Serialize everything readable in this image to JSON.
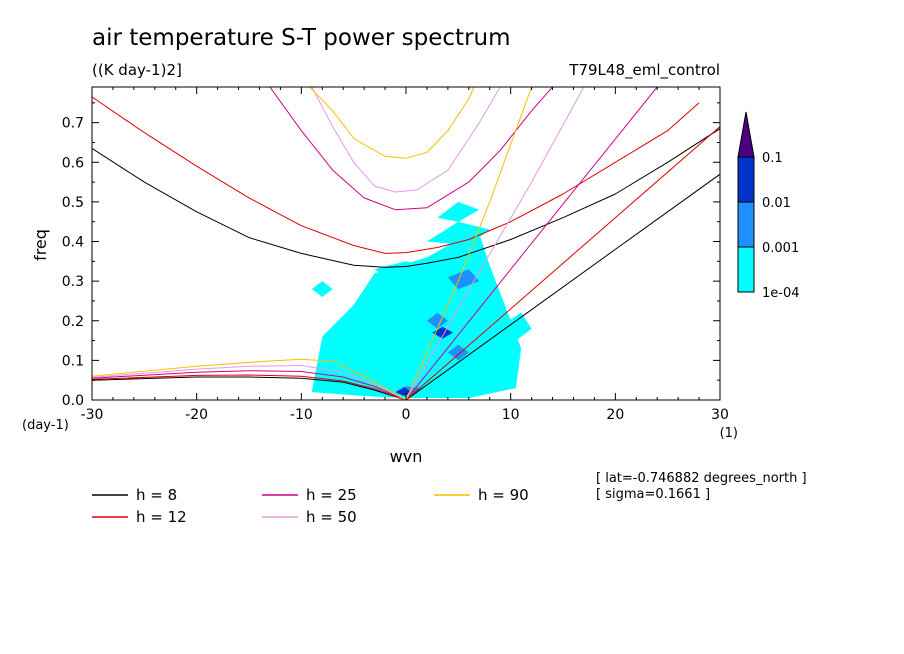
{
  "chart_data": {
    "type": "contour",
    "title": "air temperature S-T power spectrum",
    "units": "((K day-1)2]",
    "experiment": "T79L48_eml_control",
    "xlabel": "wvn",
    "ylabel": "freq",
    "x_unit_label": "(1)",
    "y_unit_label": "(day-1)",
    "xlim": [
      -30,
      30
    ],
    "ylim": [
      0,
      0.79
    ],
    "x_ticks": [
      -30,
      -20,
      -10,
      0,
      10,
      20,
      30
    ],
    "x_tick_labels": [
      "-30",
      "-20",
      "-10",
      "0",
      "10",
      "20",
      "30"
    ],
    "y_ticks": [
      0,
      0.1,
      0.2,
      0.3,
      0.4,
      0.5,
      0.6,
      0.7
    ],
    "y_tick_labels": [
      "0.0",
      "0.1",
      "0.2",
      "0.3",
      "0.4",
      "0.5",
      "0.6",
      "0.7"
    ],
    "colorbar": {
      "levels": [
        "1e-04",
        "0.001",
        "0.01",
        "0.1"
      ],
      "colors": [
        "#00ffff",
        "#1e90ff",
        "#0033cc",
        "#4b0082"
      ]
    },
    "dispersion_legend": [
      {
        "label": "h =  8",
        "h": 8,
        "color": "#000000"
      },
      {
        "label": "h = 12",
        "h": 12,
        "color": "#e00000"
      },
      {
        "label": "h = 25",
        "h": 25,
        "color": "#d0008c"
      },
      {
        "label": "h = 50",
        "h": 50,
        "color": "#e39ae3"
      },
      {
        "label": "h = 90",
        "h": 90,
        "color": "#f5c000"
      }
    ],
    "curves": [
      {
        "name": "ig-h8",
        "color": "#000000",
        "points": [
          [
            -30,
            0.635
          ],
          [
            -25,
            0.55
          ],
          [
            -20,
            0.475
          ],
          [
            -15,
            0.41
          ],
          [
            -10,
            0.37
          ],
          [
            -5,
            0.34
          ],
          [
            -2,
            0.335
          ],
          [
            0,
            0.337
          ],
          [
            2,
            0.345
          ],
          [
            5,
            0.36
          ],
          [
            10,
            0.405
          ],
          [
            15,
            0.46
          ],
          [
            20,
            0.52
          ],
          [
            25,
            0.6
          ],
          [
            30,
            0.685
          ]
        ]
      },
      {
        "name": "ig-h12",
        "color": "#e00000",
        "points": [
          [
            -30,
            0.765
          ],
          [
            -25,
            0.675
          ],
          [
            -20,
            0.59
          ],
          [
            -15,
            0.51
          ],
          [
            -10,
            0.44
          ],
          [
            -5,
            0.39
          ],
          [
            -2,
            0.37
          ],
          [
            0,
            0.372
          ],
          [
            3,
            0.385
          ],
          [
            6,
            0.405
          ],
          [
            10,
            0.45
          ],
          [
            15,
            0.52
          ],
          [
            20,
            0.6
          ],
          [
            25,
            0.68
          ],
          [
            28,
            0.75
          ]
        ]
      },
      {
        "name": "ig-h25",
        "color": "#d0008c",
        "points": [
          [
            -13,
            0.79
          ],
          [
            -10,
            0.68
          ],
          [
            -7,
            0.58
          ],
          [
            -4,
            0.51
          ],
          [
            -1,
            0.48
          ],
          [
            2,
            0.485
          ],
          [
            6,
            0.55
          ],
          [
            9,
            0.63
          ],
          [
            12,
            0.73
          ],
          [
            14,
            0.79
          ]
        ]
      },
      {
        "name": "ig-h50",
        "color": "#e39ae3",
        "points": [
          [
            -9,
            0.79
          ],
          [
            -7,
            0.69
          ],
          [
            -5,
            0.6
          ],
          [
            -3,
            0.54
          ],
          [
            -1,
            0.525
          ],
          [
            1,
            0.53
          ],
          [
            4,
            0.58
          ],
          [
            7,
            0.7
          ],
          [
            9,
            0.79
          ]
        ]
      },
      {
        "name": "ig-h90",
        "color": "#f5c000",
        "points": [
          [
            -9.2,
            0.79
          ],
          [
            -7,
            0.73
          ],
          [
            -5,
            0.66
          ],
          [
            -2,
            0.615
          ],
          [
            0,
            0.61
          ],
          [
            2,
            0.625
          ],
          [
            4,
            0.68
          ],
          [
            6,
            0.76
          ],
          [
            6.5,
            0.79
          ]
        ]
      },
      {
        "name": "kelvin-h8",
        "color": "#000000",
        "points": [
          [
            0,
            0
          ],
          [
            10,
            0.19
          ],
          [
            20,
            0.38
          ],
          [
            30,
            0.57
          ]
        ]
      },
      {
        "name": "kelvin-h12",
        "color": "#e00000",
        "points": [
          [
            0,
            0
          ],
          [
            10,
            0.23
          ],
          [
            20,
            0.46
          ],
          [
            30,
            0.69
          ]
        ]
      },
      {
        "name": "kelvin-h25",
        "color": "#d0008c",
        "points": [
          [
            0,
            0
          ],
          [
            10,
            0.33
          ],
          [
            17,
            0.56
          ],
          [
            24,
            0.79
          ]
        ]
      },
      {
        "name": "kelvin-h50",
        "color": "#e39ae3",
        "points": [
          [
            0,
            0
          ],
          [
            6.5,
            0.3
          ],
          [
            12,
            0.55
          ],
          [
            17,
            0.79
          ]
        ]
      },
      {
        "name": "kelvin-h90",
        "color": "#f5c000",
        "points": [
          [
            0,
            0
          ],
          [
            5,
            0.3
          ],
          [
            8,
            0.5
          ],
          [
            12,
            0.79
          ]
        ]
      },
      {
        "name": "rossby-h8",
        "color": "#000000",
        "points": [
          [
            -30,
            0.05
          ],
          [
            -20,
            0.058
          ],
          [
            -15,
            0.058
          ],
          [
            -10,
            0.055
          ],
          [
            -6,
            0.045
          ],
          [
            -3,
            0.025
          ],
          [
            0,
            0
          ]
        ]
      },
      {
        "name": "rossby-h12",
        "color": "#e00000",
        "points": [
          [
            -30,
            0.052
          ],
          [
            -20,
            0.062
          ],
          [
            -15,
            0.063
          ],
          [
            -10,
            0.06
          ],
          [
            -6,
            0.048
          ],
          [
            -3,
            0.028
          ],
          [
            0,
            0
          ]
        ]
      },
      {
        "name": "rossby-h25",
        "color": "#d0008c",
        "points": [
          [
            -30,
            0.055
          ],
          [
            -20,
            0.07
          ],
          [
            -15,
            0.074
          ],
          [
            -10,
            0.072
          ],
          [
            -6,
            0.058
          ],
          [
            -3,
            0.034
          ],
          [
            0,
            0
          ]
        ]
      },
      {
        "name": "rossby-h50",
        "color": "#e39ae3",
        "points": [
          [
            -30,
            0.057
          ],
          [
            -20,
            0.078
          ],
          [
            -15,
            0.085
          ],
          [
            -10,
            0.087
          ],
          [
            -6,
            0.07
          ],
          [
            -3,
            0.04
          ],
          [
            0,
            0
          ]
        ]
      },
      {
        "name": "rossby-h90",
        "color": "#f5c000",
        "points": [
          [
            -30,
            0.06
          ],
          [
            -20,
            0.085
          ],
          [
            -14,
            0.097
          ],
          [
            -10,
            0.103
          ],
          [
            -7,
            0.098
          ],
          [
            -4,
            0.06
          ],
          [
            -2,
            0.03
          ],
          [
            0,
            0
          ]
        ]
      }
    ],
    "power_regions": [
      {
        "level": "1e-04",
        "points": [
          [
            -9,
            0.02
          ],
          [
            -8,
            0.16
          ],
          [
            -5,
            0.24
          ],
          [
            -3,
            0.32
          ],
          [
            2,
            0.36
          ],
          [
            4,
            0.39
          ],
          [
            7,
            0.42
          ],
          [
            8,
            0.34
          ],
          [
            10,
            0.2
          ],
          [
            11,
            0.13
          ],
          [
            10.5,
            0.03
          ],
          [
            6,
            0.005
          ],
          [
            0,
            0.005
          ],
          [
            -4,
            0.01
          ]
        ]
      },
      {
        "level": "1e-04",
        "points": [
          [
            -3,
            0.33
          ],
          [
            0,
            0.35
          ],
          [
            3,
            0.33
          ],
          [
            1,
            0.3
          ],
          [
            -2,
            0.31
          ]
        ]
      },
      {
        "level": "1e-04",
        "points": [
          [
            2,
            0.4
          ],
          [
            5,
            0.45
          ],
          [
            8,
            0.43
          ],
          [
            6,
            0.39
          ]
        ]
      },
      {
        "level": "1e-04",
        "points": [
          [
            3,
            0.46
          ],
          [
            5,
            0.5
          ],
          [
            7,
            0.48
          ],
          [
            5,
            0.45
          ]
        ]
      },
      {
        "level": "1e-04",
        "points": [
          [
            -8,
            0.12
          ],
          [
            -6,
            0.15
          ],
          [
            -5,
            0.1
          ],
          [
            -7,
            0.08
          ]
        ]
      },
      {
        "level": "1e-04",
        "points": [
          [
            -9,
            0.28
          ],
          [
            -8,
            0.3
          ],
          [
            -7,
            0.28
          ],
          [
            -8,
            0.26
          ]
        ]
      },
      {
        "level": "1e-04",
        "points": [
          [
            8,
            0.17
          ],
          [
            11,
            0.22
          ],
          [
            12,
            0.18
          ],
          [
            10,
            0.14
          ]
        ]
      },
      {
        "level": "0.001",
        "points": [
          [
            2,
            0.2
          ],
          [
            3,
            0.22
          ],
          [
            4,
            0.2
          ],
          [
            3,
            0.18
          ]
        ]
      },
      {
        "level": "0.001",
        "points": [
          [
            4,
            0.12
          ],
          [
            5,
            0.14
          ],
          [
            6,
            0.12
          ],
          [
            5,
            0.1
          ]
        ]
      },
      {
        "level": "0.001",
        "points": [
          [
            4,
            0.31
          ],
          [
            6,
            0.33
          ],
          [
            7,
            0.3
          ],
          [
            5,
            0.28
          ]
        ]
      },
      {
        "level": "0.001",
        "points": [
          [
            -1,
            0.02
          ],
          [
            0,
            0.035
          ],
          [
            1.5,
            0.03
          ],
          [
            0.5,
            0.01
          ]
        ]
      },
      {
        "level": "0.01",
        "points": [
          [
            2.5,
            0.17
          ],
          [
            3.5,
            0.185
          ],
          [
            4.5,
            0.17
          ],
          [
            3.5,
            0.155
          ]
        ]
      },
      {
        "level": "0.01",
        "points": [
          [
            -1,
            0.02
          ],
          [
            -0.2,
            0.032
          ],
          [
            0.6,
            0.02
          ],
          [
            -0.2,
            0.01
          ]
        ]
      }
    ],
    "meta_lines": [
      "[ lat=-0.746882 degrees_north ]",
      "[ sigma=0.1661 ]"
    ]
  }
}
